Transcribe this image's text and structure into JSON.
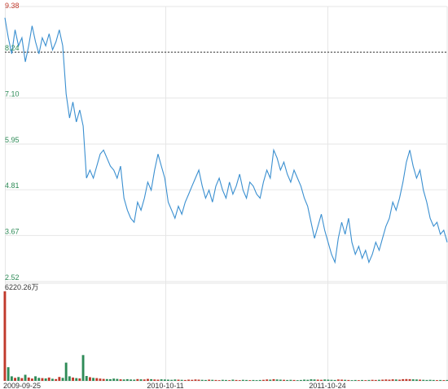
{
  "chart_data": {
    "type": "line",
    "title": "",
    "xlabel": "",
    "ylabel": "",
    "grid": true,
    "y_ticks": [
      "9.38",
      "8.24",
      "7.10",
      "5.95",
      "4.81",
      "3.67",
      "2.52"
    ],
    "ylim": [
      2.52,
      9.38
    ],
    "x_ticks": [
      "2009-09-25",
      "2010-10-11",
      "2011-10-24"
    ],
    "reference_value": 8.24,
    "colors": {
      "price_line": "#3a8fd0",
      "grid": "#e6e6e6",
      "vol_up": "#c0392b",
      "vol_down": "#2e8b57"
    },
    "series": [
      {
        "values": [
          9.1,
          8.6,
          8.2,
          8.8,
          8.4,
          8.6,
          8.0,
          8.4,
          8.9,
          8.5,
          8.2,
          8.6,
          8.4,
          8.7,
          8.3,
          8.5,
          8.8,
          8.4,
          7.2,
          6.6,
          7.0,
          6.5,
          6.8,
          6.4,
          5.1,
          5.3,
          5.1,
          5.4,
          5.7,
          5.8,
          5.6,
          5.4,
          5.3,
          5.1,
          5.4,
          4.6,
          4.3,
          4.1,
          4.0,
          4.5,
          4.3,
          4.6,
          5.0,
          4.8,
          5.3,
          5.7,
          5.4,
          5.1,
          4.5,
          4.3,
          4.1,
          4.4,
          4.2,
          4.5,
          4.7,
          4.9,
          5.1,
          5.3,
          4.9,
          4.6,
          4.8,
          4.5,
          4.9,
          5.1,
          4.8,
          4.6,
          5.0,
          4.7,
          4.9,
          5.2,
          4.8,
          4.6,
          5.0,
          4.9,
          4.7,
          4.6,
          5.0,
          5.3,
          5.1,
          5.8,
          5.6,
          5.3,
          5.5,
          5.2,
          5.0,
          5.3,
          5.1,
          4.9,
          4.6,
          4.4,
          4.0,
          3.6,
          3.9,
          4.2,
          3.8,
          3.5,
          3.2,
          3.0,
          3.6,
          4.0,
          3.7,
          4.1,
          3.5,
          3.2,
          3.4,
          3.1,
          3.3,
          3.0,
          3.2,
          3.5,
          3.3,
          3.6,
          3.9,
          4.1,
          4.5,
          4.3,
          4.6,
          5.0,
          5.5,
          5.8,
          5.4,
          5.1,
          5.3,
          4.8,
          4.5,
          4.1,
          3.9,
          4.0,
          3.7,
          3.8,
          3.5
        ]
      }
    ],
    "volume": {
      "max_label": "6220.26万",
      "ylim": [
        0,
        6220.26
      ],
      "values": [
        5900,
        900,
        300,
        200,
        250,
        180,
        400,
        220,
        150,
        300,
        200,
        180,
        160,
        220,
        140,
        120,
        260,
        200,
        1200,
        300,
        220,
        180,
        160,
        1700,
        320,
        240,
        200,
        180,
        150,
        130,
        120,
        110,
        150,
        130,
        100,
        90,
        110,
        90,
        80,
        120,
        100,
        90,
        130,
        110,
        90,
        80,
        100,
        90,
        80,
        70,
        90,
        80,
        70,
        60,
        80,
        70,
        90,
        80,
        70,
        60,
        80,
        70,
        60,
        50,
        70,
        60,
        50,
        80,
        60,
        50,
        70,
        60,
        50,
        60,
        50,
        60,
        70,
        90,
        80,
        110,
        90,
        80,
        70,
        60,
        70,
        60,
        50,
        60,
        80,
        70,
        100,
        90,
        80,
        70,
        90,
        80,
        70,
        60,
        90,
        80,
        70,
        60,
        50,
        60,
        50,
        60,
        50,
        60,
        70,
        60,
        70,
        80,
        90,
        80,
        100,
        90,
        80,
        110,
        120,
        110,
        100,
        90,
        80,
        70,
        60,
        70,
        60,
        50,
        60,
        50,
        60
      ]
    }
  }
}
